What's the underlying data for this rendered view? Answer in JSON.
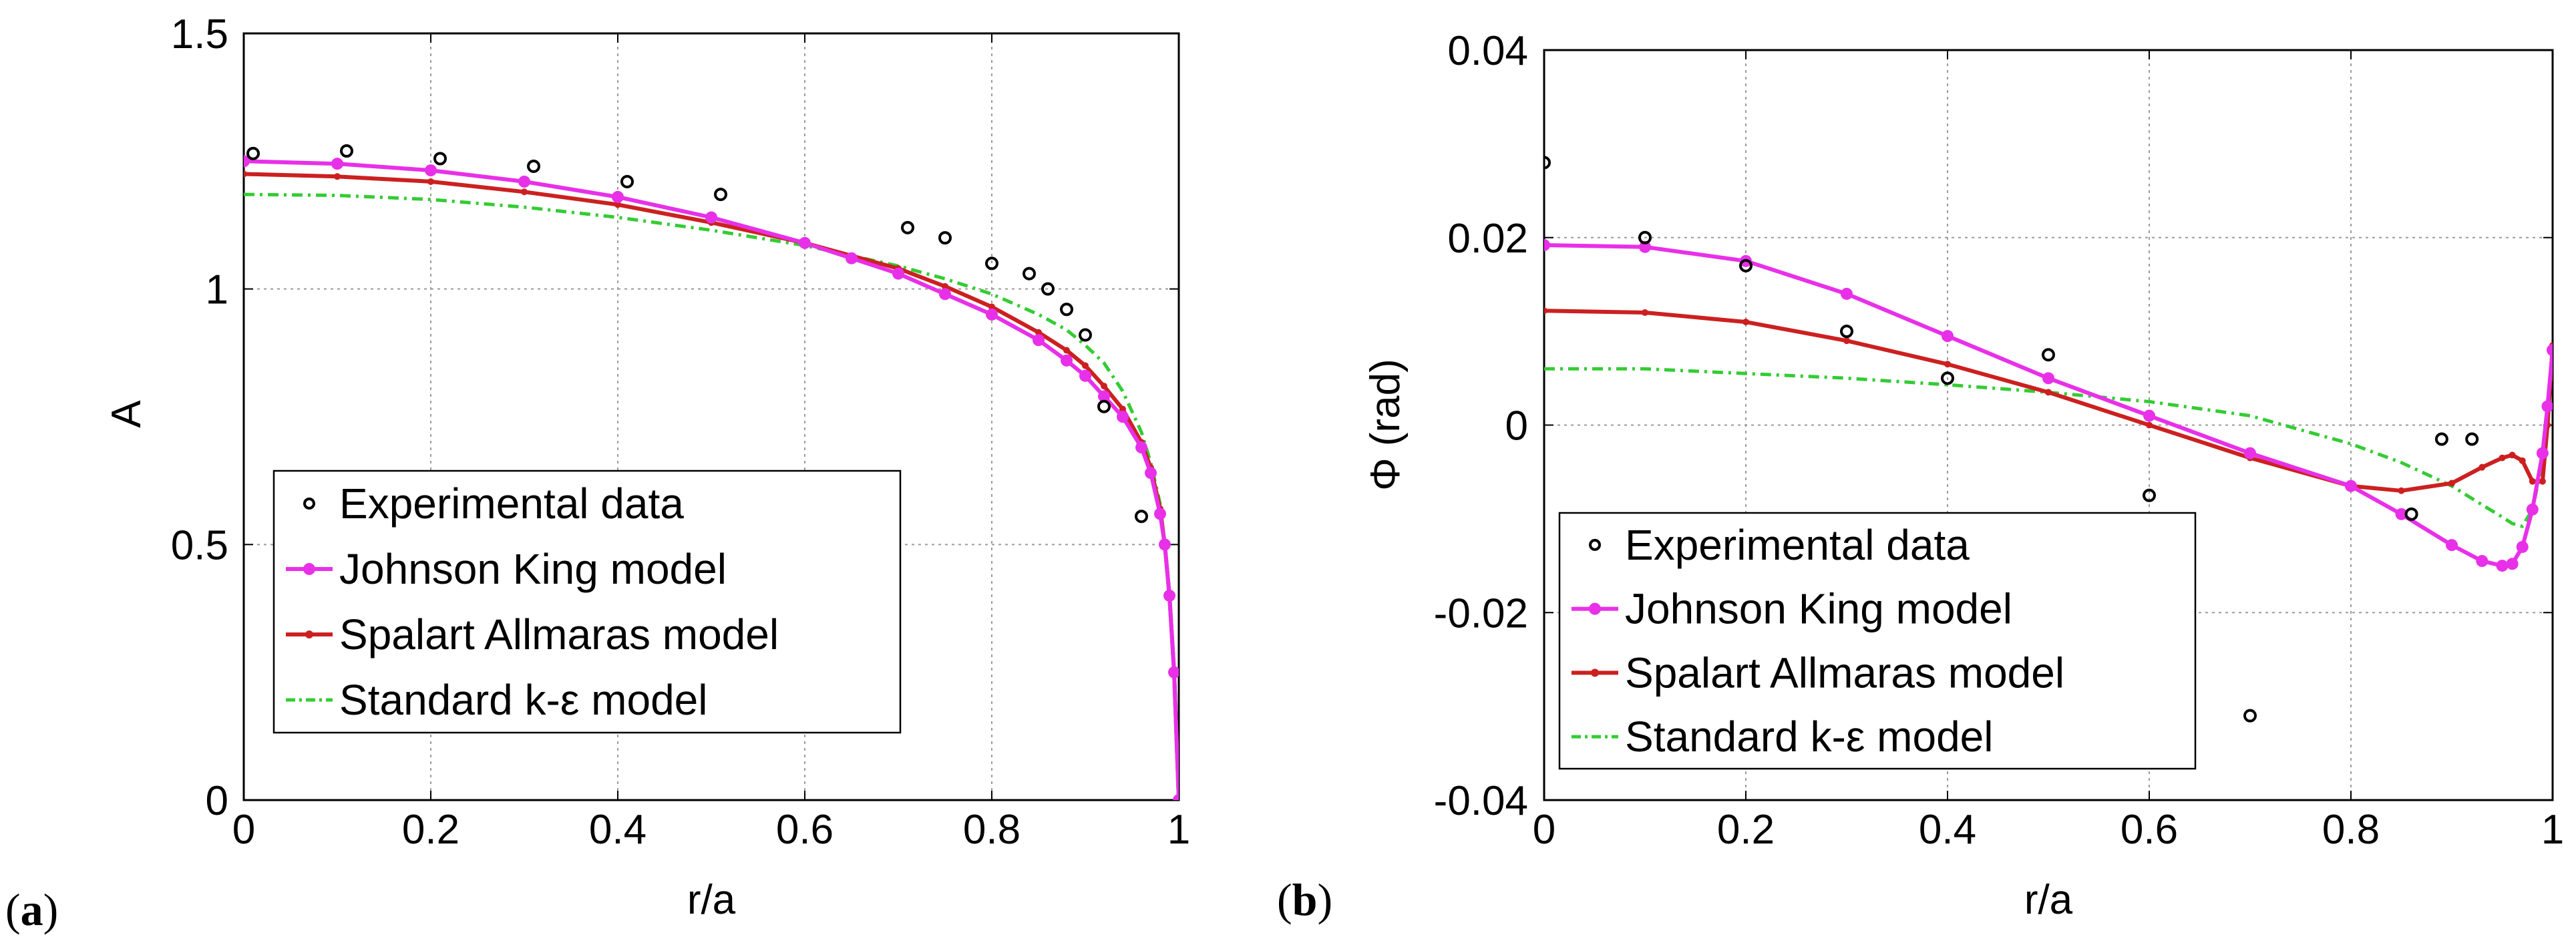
{
  "figure": {
    "panel_labels": [
      {
        "open": "(",
        "letter": "a",
        "close": ")"
      },
      {
        "open": "(",
        "letter": "b",
        "close": ")"
      }
    ]
  },
  "chart_data": [
    {
      "type": "line",
      "title": "",
      "xlabel": "r/a",
      "ylabel": "A",
      "xlim": [
        0,
        1
      ],
      "ylim": [
        0,
        1.5
      ],
      "xticks": [
        0,
        0.2,
        0.4,
        0.6,
        0.8,
        1
      ],
      "xtick_labels": [
        "0",
        "0.2",
        "0.4",
        "0.6",
        "0.8",
        "1"
      ],
      "yticks": [
        0,
        0.5,
        1,
        1.5
      ],
      "ytick_labels": [
        "0",
        "0.5",
        "1",
        "1.5"
      ],
      "grid": true,
      "legend_position": "bottom-left",
      "series": [
        {
          "name": "Experimental data",
          "style": "points",
          "color": "#000000",
          "x": [
            0.01,
            0.11,
            0.21,
            0.31,
            0.41,
            0.51,
            0.71,
            0.75,
            0.8,
            0.84,
            0.86,
            0.88,
            0.9,
            0.92,
            0.96
          ],
          "y": [
            1.265,
            1.27,
            1.255,
            1.24,
            1.21,
            1.185,
            1.12,
            1.1,
            1.05,
            1.03,
            1.0,
            0.96,
            0.91,
            0.77,
            0.555
          ]
        },
        {
          "name": "Johnson King model",
          "style": "line-dots",
          "color": "#e830e8",
          "x": [
            0,
            0.1,
            0.2,
            0.3,
            0.4,
            0.5,
            0.6,
            0.65,
            0.7,
            0.75,
            0.8,
            0.85,
            0.88,
            0.9,
            0.92,
            0.94,
            0.96,
            0.97,
            0.98,
            0.985,
            0.99,
            0.995,
            1.0
          ],
          "y": [
            1.25,
            1.245,
            1.232,
            1.21,
            1.18,
            1.14,
            1.09,
            1.06,
            1.03,
            0.99,
            0.95,
            0.9,
            0.86,
            0.83,
            0.79,
            0.75,
            0.69,
            0.64,
            0.56,
            0.5,
            0.4,
            0.25,
            0.0
          ]
        },
        {
          "name": "Spalart Allmaras model",
          "style": "line-dots",
          "color": "#cc2020",
          "x": [
            0,
            0.1,
            0.2,
            0.3,
            0.4,
            0.5,
            0.6,
            0.65,
            0.7,
            0.75,
            0.8,
            0.85,
            0.88,
            0.9,
            0.92,
            0.94,
            0.96,
            0.97,
            0.98,
            0.985,
            0.99,
            0.995,
            1.0
          ],
          "y": [
            1.225,
            1.22,
            1.21,
            1.19,
            1.165,
            1.13,
            1.09,
            1.065,
            1.04,
            1.005,
            0.965,
            0.915,
            0.88,
            0.85,
            0.81,
            0.765,
            0.7,
            0.65,
            0.57,
            0.5,
            0.4,
            0.25,
            0.0
          ]
        },
        {
          "name": "Standard k-ε model",
          "style": "dash-dot",
          "color": "#33cc33",
          "x": [
            0,
            0.1,
            0.2,
            0.3,
            0.4,
            0.5,
            0.6,
            0.65,
            0.7,
            0.75,
            0.8,
            0.85,
            0.88,
            0.9,
            0.92,
            0.94,
            0.96,
            0.97,
            0.98,
            0.985,
            0.99,
            0.995,
            1.0
          ],
          "y": [
            1.185,
            1.183,
            1.175,
            1.16,
            1.14,
            1.115,
            1.085,
            1.065,
            1.045,
            1.02,
            0.99,
            0.95,
            0.92,
            0.89,
            0.855,
            0.8,
            0.72,
            0.66,
            0.58,
            0.5,
            0.4,
            0.25,
            0.0
          ]
        }
      ]
    },
    {
      "type": "line",
      "title": "",
      "xlabel": "r/a",
      "ylabel": "Φ (rad)",
      "xlim": [
        0,
        1
      ],
      "ylim": [
        -0.04,
        0.04
      ],
      "xticks": [
        0,
        0.2,
        0.4,
        0.6,
        0.8,
        1
      ],
      "xtick_labels": [
        "0",
        "0.2",
        "0.4",
        "0.6",
        "0.8",
        "1"
      ],
      "yticks": [
        -0.04,
        -0.02,
        0,
        0.02,
        0.04
      ],
      "ytick_labels": [
        "-0.04",
        "-0.02",
        "0",
        "0.02",
        "0.04"
      ],
      "grid": true,
      "legend_position": "bottom-left",
      "series": [
        {
          "name": "Experimental data",
          "style": "points",
          "color": "#000000",
          "x": [
            0.0,
            0.1,
            0.2,
            0.3,
            0.4,
            0.5,
            0.6,
            0.7,
            0.86,
            0.89,
            0.92
          ],
          "y": [
            0.028,
            0.02,
            0.017,
            0.01,
            0.005,
            0.0075,
            -0.0075,
            -0.031,
            -0.0095,
            -0.0015,
            -0.0015
          ]
        },
        {
          "name": "Johnson King model",
          "style": "line-dots",
          "color": "#e830e8",
          "x": [
            0,
            0.1,
            0.2,
            0.3,
            0.4,
            0.5,
            0.6,
            0.7,
            0.8,
            0.85,
            0.9,
            0.93,
            0.95,
            0.96,
            0.97,
            0.98,
            0.99,
            0.995,
            1.0
          ],
          "y": [
            0.0192,
            0.019,
            0.0175,
            0.014,
            0.0095,
            0.005,
            0.001,
            -0.003,
            -0.0065,
            -0.0095,
            -0.0128,
            -0.0145,
            -0.015,
            -0.0148,
            -0.013,
            -0.009,
            -0.003,
            0.002,
            0.008
          ]
        },
        {
          "name": "Spalart Allmaras model",
          "style": "line-dots",
          "color": "#cc2020",
          "x": [
            0,
            0.1,
            0.2,
            0.3,
            0.4,
            0.5,
            0.6,
            0.7,
            0.8,
            0.85,
            0.9,
            0.93,
            0.95,
            0.96,
            0.97,
            0.98,
            0.99,
            0.995,
            1.0
          ],
          "y": [
            0.0122,
            0.012,
            0.011,
            0.009,
            0.0065,
            0.0035,
            0.0,
            -0.0035,
            -0.0065,
            -0.007,
            -0.0062,
            -0.0045,
            -0.0035,
            -0.0032,
            -0.0038,
            -0.006,
            -0.006,
            0.0,
            0.0085
          ]
        },
        {
          "name": "Standard k-ε model",
          "style": "dash-dot",
          "color": "#33cc33",
          "x": [
            0,
            0.1,
            0.2,
            0.3,
            0.4,
            0.5,
            0.6,
            0.7,
            0.8,
            0.85,
            0.9,
            0.93,
            0.95,
            0.96,
            0.97,
            0.98,
            0.99,
            0.995,
            1.0
          ],
          "y": [
            0.006,
            0.006,
            0.0055,
            0.005,
            0.0043,
            0.0035,
            0.0025,
            0.001,
            -0.002,
            -0.004,
            -0.0065,
            -0.0085,
            -0.0098,
            -0.0105,
            -0.0108,
            -0.009,
            -0.004,
            0.001,
            0.0065
          ]
        }
      ]
    }
  ]
}
